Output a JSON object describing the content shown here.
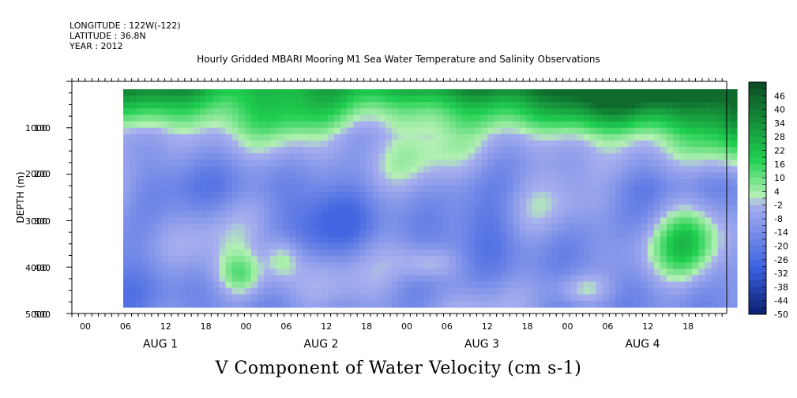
{
  "header": {
    "longitude": "LONGITUDE : 122W(-122)",
    "latitude": "LATITUDE : 36.8N",
    "year": "YEAR : 2012"
  },
  "title": "Hourly Gridded MBARI Mooring M1 Sea Water Temperature and Salinity Observations",
  "subtitle": "V Component of Water Velocity (cm s-1)",
  "chart_data": {
    "type": "heatmap",
    "variable": "V Component of Water Velocity",
    "units": "cm s-1",
    "ylabel": "DEPTH (m)",
    "y_ticks": [
      "1000",
      "2000",
      "3000",
      "4000",
      "5000"
    ],
    "y_ticks_overprint": [
      "100",
      "200",
      "300",
      "400",
      "500"
    ],
    "ylim": [
      5000,
      0
    ],
    "x_hour_labels": [
      "00",
      "06",
      "12",
      "18",
      "00",
      "06",
      "12",
      "18",
      "00",
      "06",
      "12",
      "18",
      "00",
      "06",
      "12",
      "18"
    ],
    "x_day_labels": [
      "AUG  1",
      "AUG  2",
      "AUG  3",
      "AUG  4"
    ],
    "colorbar": {
      "labels": [
        "46",
        "40",
        "34",
        "28",
        "22",
        "16",
        "10",
        "4",
        "-2",
        "-8",
        "-14",
        "-20",
        "-26",
        "-32",
        "-38",
        "-44",
        "-50"
      ],
      "min": -50,
      "max": 52,
      "step": 3
    },
    "pattern_notes": "green (positive, up to ~40) dominates upper depths on Aug 3-4; blue (negative, to ~-20) dominates mid and lower depths; scattered green patches at depth",
    "colors": {
      "neg_deep": "#0a1f70",
      "neg_mid": "#3a60e0",
      "neg_light": "#a8b0ee",
      "pos_light": "#b4f0b4",
      "pos_mid": "#20d050",
      "pos_deep": "#0a4a22"
    }
  }
}
